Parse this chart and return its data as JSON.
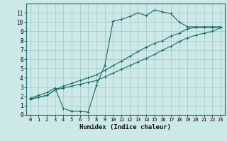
{
  "bg_color": "#cce8e8",
  "grid_color": "#aacccc",
  "line_color": "#1a6b6b",
  "xlabel": "Humidex (Indice chaleur)",
  "xlim": [
    -0.5,
    23.5
  ],
  "ylim": [
    0,
    12
  ],
  "xticks": [
    0,
    1,
    2,
    3,
    4,
    5,
    6,
    7,
    8,
    9,
    10,
    11,
    12,
    13,
    14,
    15,
    16,
    17,
    18,
    19,
    20,
    21,
    22,
    23
  ],
  "yticks": [
    0,
    1,
    2,
    3,
    4,
    5,
    6,
    7,
    8,
    9,
    10,
    11
  ],
  "line1_x": [
    0,
    1,
    2,
    3,
    4,
    5,
    6,
    7,
    8,
    9,
    10,
    11,
    12,
    13,
    14,
    15,
    16,
    17,
    18,
    19,
    20,
    21,
    22,
    23
  ],
  "line1_y": [
    1.8,
    2.1,
    2.4,
    2.9,
    0.7,
    0.4,
    0.4,
    0.3,
    3.2,
    5.3,
    10.1,
    10.3,
    10.6,
    11.0,
    10.7,
    11.3,
    11.1,
    10.9,
    10.0,
    9.5,
    9.5,
    9.5,
    9.5,
    9.5
  ],
  "line2_x": [
    0,
    1,
    2,
    3,
    4,
    5,
    6,
    7,
    8,
    9,
    10,
    11,
    12,
    13,
    14,
    15,
    16,
    17,
    18,
    19,
    20,
    21,
    22,
    23
  ],
  "line2_y": [
    1.7,
    1.9,
    2.1,
    2.7,
    3.1,
    3.4,
    3.7,
    4.0,
    4.3,
    4.8,
    5.3,
    5.8,
    6.3,
    6.8,
    7.3,
    7.7,
    8.0,
    8.5,
    8.8,
    9.3,
    9.4,
    9.4,
    9.4,
    9.4
  ],
  "line3_x": [
    0,
    1,
    2,
    3,
    4,
    5,
    6,
    7,
    8,
    9,
    10,
    11,
    12,
    13,
    14,
    15,
    16,
    17,
    18,
    19,
    20,
    21,
    22,
    23
  ],
  "line3_y": [
    1.7,
    1.9,
    2.1,
    2.7,
    2.9,
    3.1,
    3.3,
    3.5,
    3.7,
    4.1,
    4.5,
    4.9,
    5.3,
    5.7,
    6.1,
    6.5,
    7.0,
    7.4,
    7.9,
    8.3,
    8.6,
    8.8,
    9.0,
    9.4
  ]
}
